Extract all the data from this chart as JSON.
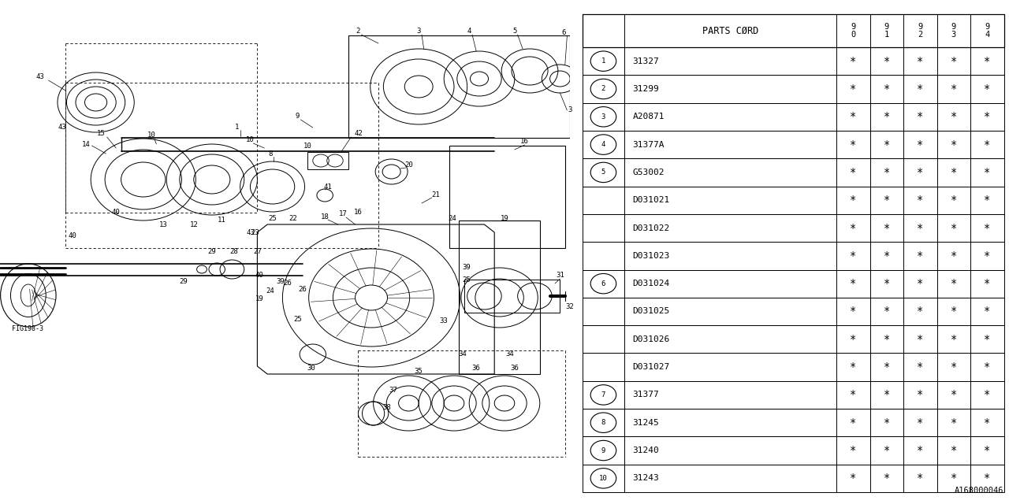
{
  "rows": [
    {
      "num": "1",
      "code": "31327",
      "vals": [
        "*",
        "*",
        "*",
        "*",
        "*"
      ]
    },
    {
      "num": "2",
      "code": "31299",
      "vals": [
        "*",
        "*",
        "*",
        "*",
        "*"
      ]
    },
    {
      "num": "3",
      "code": "A20871",
      "vals": [
        "*",
        "*",
        "*",
        "*",
        "*"
      ]
    },
    {
      "num": "4",
      "code": "31377A",
      "vals": [
        "*",
        "*",
        "*",
        "*",
        "*"
      ]
    },
    {
      "num": "5",
      "code": "G53002",
      "vals": [
        "*",
        "*",
        "*",
        "*",
        "*"
      ]
    },
    {
      "num": "",
      "code": "D031021",
      "vals": [
        "*",
        "*",
        "*",
        "*",
        "*"
      ]
    },
    {
      "num": "",
      "code": "D031022",
      "vals": [
        "*",
        "*",
        "*",
        "*",
        "*"
      ]
    },
    {
      "num": "",
      "code": "D031023",
      "vals": [
        "*",
        "*",
        "*",
        "*",
        "*"
      ]
    },
    {
      "num": "6",
      "code": "D031024",
      "vals": [
        "*",
        "*",
        "*",
        "*",
        "*"
      ]
    },
    {
      "num": "",
      "code": "D031025",
      "vals": [
        "*",
        "*",
        "*",
        "*",
        "*"
      ]
    },
    {
      "num": "",
      "code": "D031026",
      "vals": [
        "*",
        "*",
        "*",
        "*",
        "*"
      ]
    },
    {
      "num": "",
      "code": "D031027",
      "vals": [
        "*",
        "*",
        "*",
        "*",
        "*"
      ]
    },
    {
      "num": "7",
      "code": "31377",
      "vals": [
        "*",
        "*",
        "*",
        "*",
        "*"
      ]
    },
    {
      "num": "8",
      "code": "31245",
      "vals": [
        "*",
        "*",
        "*",
        "*",
        "*"
      ]
    },
    {
      "num": "9",
      "code": "31240",
      "vals": [
        "*",
        "*",
        "*",
        "*",
        "*"
      ]
    },
    {
      "num": "10",
      "code": "31243",
      "vals": [
        "*",
        "*",
        "*",
        "*",
        "*"
      ]
    }
  ],
  "bg_color": "#ffffff",
  "catalog_code": "A168000046",
  "fig_ref": "FIG198-3",
  "year_labels": [
    "9\n0",
    "9\n1",
    "9\n2",
    "9\n3",
    "9\n4"
  ],
  "header_text": "PARTS CØRD"
}
